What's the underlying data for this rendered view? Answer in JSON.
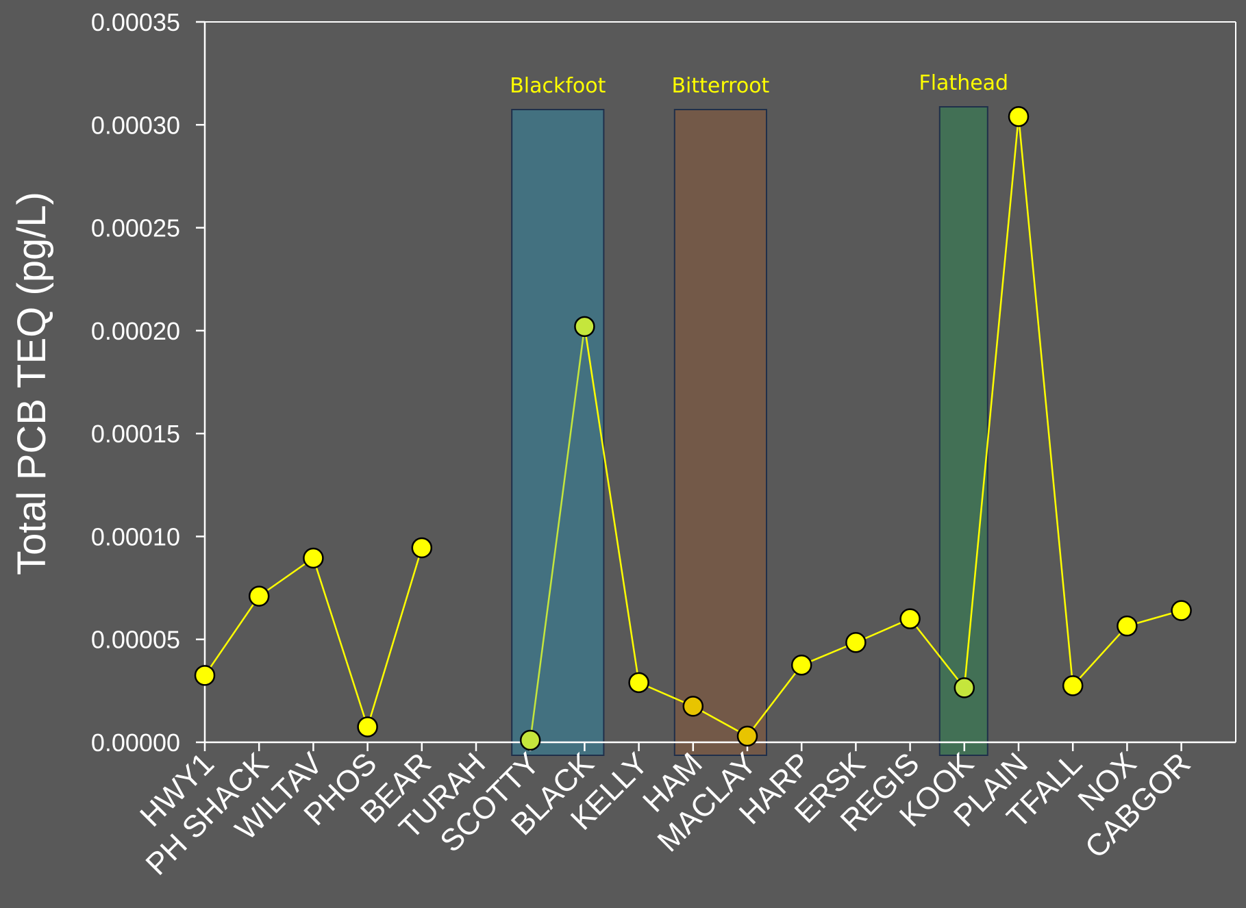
{
  "chart_data": {
    "type": "line",
    "title": "",
    "xlabel": "",
    "ylabel": "Total PCB TEQ (pg/L)",
    "ylim": [
      0,
      0.00035
    ],
    "yticks": [
      "0.00000",
      "0.00005",
      "0.00010",
      "0.00015",
      "0.00020",
      "0.00025",
      "0.00030",
      "0.00035"
    ],
    "yticks_values": [
      0,
      5e-05,
      0.0001,
      0.00015,
      0.0002,
      0.00025,
      0.0003,
      0.00035
    ],
    "grid": false,
    "categories": [
      "HWY1",
      "PH SHACK",
      "WILTAV",
      "PHOS",
      "BEAR",
      "TURAH",
      "SCOTTY",
      "BLACK",
      "KELLY",
      "HAM",
      "MACLAY",
      "HARP",
      "ERSK",
      "REGIS",
      "KOOK",
      "PLAIN",
      "TFALL",
      "NOX",
      "CABGOR"
    ],
    "values": [
      3.25e-05,
      7.1e-05,
      8.95e-05,
      7.5e-06,
      9.45e-05,
      null,
      1e-06,
      0.000202,
      2.9e-05,
      1.75e-05,
      3e-06,
      3.75e-05,
      4.85e-05,
      6e-05,
      2.65e-05,
      0.000304,
      2.75e-05,
      5.65e-05,
      6.4e-05
    ],
    "point_colors": [
      "#ffff00",
      "#ffff00",
      "#ffff00",
      "#ffff00",
      "#ffff00",
      null,
      "#c5e63c",
      "#c5e63c",
      "#ffff00",
      "#e8c400",
      "#e8c400",
      "#ffff00",
      "#ffff00",
      "#ffff00",
      "#c5e63c",
      "#ffff00",
      "#ffff00",
      "#ffff00",
      "#ffff00"
    ],
    "line_segments": [
      {
        "from": 0,
        "to": 1,
        "color": "#ffff00"
      },
      {
        "from": 1,
        "to": 2,
        "color": "#ffff00"
      },
      {
        "from": 2,
        "to": 3,
        "color": "#ffff00"
      },
      {
        "from": 3,
        "to": 4,
        "color": "#ffff00"
      },
      {
        "from": 6,
        "to": 7,
        "color": "#c5e63c"
      },
      {
        "from": 7,
        "to": 8,
        "color": "#ffff00"
      },
      {
        "from": 8,
        "to": 9,
        "color": "#ffff00"
      },
      {
        "from": 9,
        "to": 10,
        "color": "#ffff00"
      },
      {
        "from": 10,
        "to": 11,
        "color": "#ffff00"
      },
      {
        "from": 11,
        "to": 12,
        "color": "#ffff00"
      },
      {
        "from": 12,
        "to": 13,
        "color": "#ffff00"
      },
      {
        "from": 13,
        "to": 14,
        "color": "#ffff00"
      },
      {
        "from": 14,
        "to": 15,
        "color": "#ffff00"
      },
      {
        "from": 15,
        "to": 16,
        "color": "#ffff00"
      },
      {
        "from": 16,
        "to": 17,
        "color": "#ffff00"
      },
      {
        "from": 17,
        "to": 18,
        "color": "#ffff00"
      }
    ],
    "regions": [
      {
        "label": "Blackfoot",
        "from": "SCOTTY",
        "to": "BLACK",
        "color": "#437180"
      },
      {
        "label": "Bitterroot",
        "from": "HAM",
        "to": "MACLAY",
        "color": "#735948"
      },
      {
        "label": "Flathead",
        "from": "KOOK",
        "to": "KOOK",
        "color": "#427055"
      }
    ]
  },
  "colors": {
    "background": "#595959",
    "axis": "#ffffff",
    "region_label": "#ffff00",
    "region_border": "#1f2f4a"
  }
}
